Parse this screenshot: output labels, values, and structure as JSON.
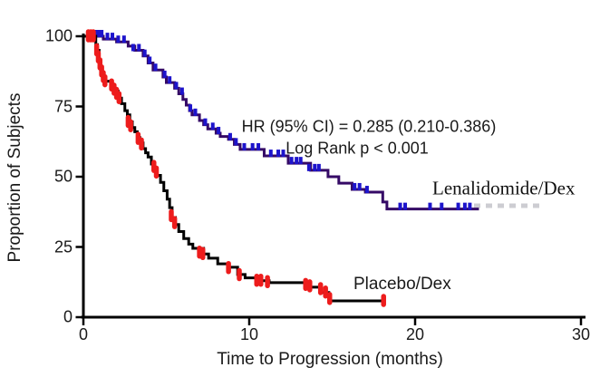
{
  "chart_data": {
    "type": "line",
    "subtype": "kaplan_meier_step",
    "title": "",
    "xlabel": "Time to Progression (months)",
    "ylabel": "Proportion of Subjects",
    "xlim": [
      0,
      30
    ],
    "ylim": [
      0,
      100
    ],
    "x_ticks": [
      0,
      10,
      20,
      30
    ],
    "y_ticks": [
      0,
      25,
      50,
      75,
      100
    ],
    "grid": false,
    "legend_position": "on-plot-labels",
    "annotations": [
      "HR (95% CI) = 0.285 (0.210-0.386)",
      "Log Rank p < 0.001"
    ],
    "series": [
      {
        "name": "Lenalidomide/Dex",
        "color": "#350a66",
        "censor_color": "#1d14cc",
        "censor_shape": "tick",
        "points": [
          [
            0,
            100
          ],
          [
            1.2,
            99
          ],
          [
            2.0,
            98
          ],
          [
            2.7,
            96.5
          ],
          [
            3.1,
            95
          ],
          [
            3.6,
            93
          ],
          [
            3.9,
            90.5
          ],
          [
            4.2,
            88
          ],
          [
            4.8,
            85.5
          ],
          [
            5.0,
            83.5
          ],
          [
            5.5,
            81.5
          ],
          [
            5.75,
            79.5
          ],
          [
            6.0,
            77.5
          ],
          [
            6.2,
            75.5
          ],
          [
            6.4,
            73.5
          ],
          [
            6.55,
            72
          ],
          [
            7.0,
            70
          ],
          [
            7.25,
            68.5
          ],
          [
            7.5,
            67
          ],
          [
            8.0,
            65.5
          ],
          [
            8.25,
            64.3
          ],
          [
            8.75,
            63.3
          ],
          [
            9.1,
            61.5
          ],
          [
            9.45,
            59.7
          ],
          [
            10.9,
            57.4
          ],
          [
            12.35,
            54.8
          ],
          [
            13.7,
            52.3
          ],
          [
            14.75,
            50
          ],
          [
            15.4,
            47.7
          ],
          [
            16.2,
            45.5
          ],
          [
            17.0,
            44.5
          ],
          [
            18.05,
            41
          ],
          [
            18.3,
            38.5
          ],
          [
            23.85,
            38.5
          ]
        ],
        "censor_marks": [
          [
            0.7,
            100
          ],
          [
            0.9,
            100
          ],
          [
            1.1,
            100
          ],
          [
            1.45,
            99
          ],
          [
            1.75,
            99
          ],
          [
            2.1,
            98
          ],
          [
            2.45,
            98
          ],
          [
            3.0,
            95
          ],
          [
            3.35,
            95
          ],
          [
            3.7,
            93
          ],
          [
            4.0,
            90.5
          ],
          [
            4.35,
            88
          ],
          [
            4.9,
            85.5
          ],
          [
            5.2,
            83.5
          ],
          [
            5.6,
            81.5
          ],
          [
            5.95,
            79.5
          ],
          [
            6.45,
            73.5
          ],
          [
            6.75,
            72
          ],
          [
            7.35,
            68.5
          ],
          [
            7.8,
            67
          ],
          [
            8.15,
            65.5
          ],
          [
            8.85,
            63.3
          ],
          [
            9.2,
            61.5
          ],
          [
            9.7,
            59.7
          ],
          [
            10.2,
            59.7
          ],
          [
            10.55,
            59.7
          ],
          [
            11.3,
            57.4
          ],
          [
            11.75,
            57.4
          ],
          [
            12.05,
            57.4
          ],
          [
            12.55,
            54.8
          ],
          [
            12.85,
            54.8
          ],
          [
            13.1,
            54.8
          ],
          [
            13.6,
            52.3
          ],
          [
            13.95,
            52.3
          ],
          [
            14.2,
            52.3
          ],
          [
            16.35,
            45.5
          ],
          [
            16.65,
            45.5
          ],
          [
            17.1,
            44.5
          ],
          [
            19.1,
            38.5
          ],
          [
            19.4,
            38.5
          ],
          [
            20.9,
            38.5
          ],
          [
            21.6,
            38.5
          ],
          [
            22.6,
            38.5
          ],
          [
            23.0,
            38.5
          ],
          [
            23.3,
            38.5
          ]
        ]
      },
      {
        "name": "Placebo/Dex",
        "color": "#000000",
        "censor_color": "#ed1c1c",
        "censor_shape": "blob",
        "points": [
          [
            0,
            100
          ],
          [
            0.75,
            97
          ],
          [
            0.85,
            95
          ],
          [
            0.95,
            91
          ],
          [
            1.05,
            89
          ],
          [
            1.15,
            86
          ],
          [
            1.25,
            84
          ],
          [
            1.75,
            82.5
          ],
          [
            1.9,
            80.5
          ],
          [
            2.1,
            78
          ],
          [
            2.3,
            76
          ],
          [
            2.5,
            73.5
          ],
          [
            2.65,
            72
          ],
          [
            2.8,
            69.5
          ],
          [
            2.95,
            67.5
          ],
          [
            3.1,
            66
          ],
          [
            3.25,
            64
          ],
          [
            3.4,
            62
          ],
          [
            3.6,
            60
          ],
          [
            3.75,
            58.5
          ],
          [
            3.9,
            57
          ],
          [
            4.1,
            54.5
          ],
          [
            4.3,
            52.5
          ],
          [
            4.45,
            50.5
          ],
          [
            4.65,
            48
          ],
          [
            4.85,
            45
          ],
          [
            5.05,
            42
          ],
          [
            5.2,
            39
          ],
          [
            5.35,
            35.5
          ],
          [
            5.55,
            33
          ],
          [
            5.75,
            30.5
          ],
          [
            6.05,
            28
          ],
          [
            6.35,
            26
          ],
          [
            6.6,
            24.5
          ],
          [
            7.25,
            22.5
          ],
          [
            7.55,
            21
          ],
          [
            8.1,
            19
          ],
          [
            8.7,
            17.8
          ],
          [
            9.3,
            15.2
          ],
          [
            9.75,
            14
          ],
          [
            10.45,
            13
          ],
          [
            11.2,
            12.3
          ],
          [
            13.5,
            10.7
          ],
          [
            14.3,
            8.8
          ],
          [
            14.8,
            5.8
          ],
          [
            18.15,
            5.8
          ]
        ],
        "censor_marks": [
          [
            0.3,
            100
          ],
          [
            0.45,
            100
          ],
          [
            0.6,
            100
          ],
          [
            0.8,
            95
          ],
          [
            0.9,
            92.5
          ],
          [
            1.0,
            90
          ],
          [
            1.1,
            87.5
          ],
          [
            1.2,
            85.5
          ],
          [
            1.3,
            84
          ],
          [
            1.7,
            82.5
          ],
          [
            1.85,
            81
          ],
          [
            2.0,
            79.5
          ],
          [
            2.15,
            78
          ],
          [
            2.7,
            69.5
          ],
          [
            2.85,
            68
          ],
          [
            3.3,
            63.5
          ],
          [
            3.5,
            61.5
          ],
          [
            4.25,
            53.5
          ],
          [
            4.4,
            51.5
          ],
          [
            5.3,
            36
          ],
          [
            5.5,
            33.5
          ],
          [
            7.0,
            23
          ],
          [
            7.2,
            22.5
          ],
          [
            8.75,
            17.5
          ],
          [
            9.4,
            15
          ],
          [
            10.45,
            13
          ],
          [
            10.7,
            13
          ],
          [
            11.1,
            12.5
          ],
          [
            13.4,
            11.5
          ],
          [
            13.65,
            11
          ],
          [
            14.3,
            10
          ],
          [
            14.6,
            8.8
          ],
          [
            14.85,
            6.5
          ],
          [
            18.1,
            5.8
          ]
        ]
      }
    ]
  }
}
